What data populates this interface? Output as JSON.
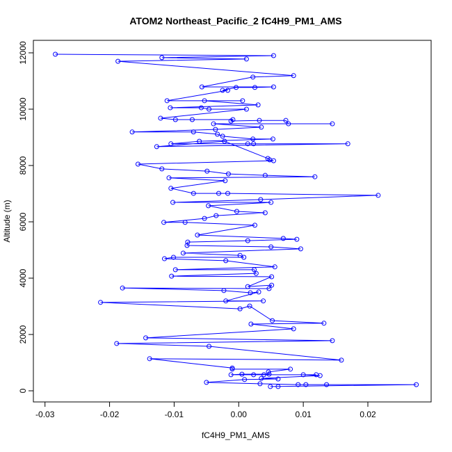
{
  "chart_data": {
    "type": "line",
    "title": "ATOM2 Northeast_Pacific_2 fC4H9_PM1_AMS",
    "x_label": "fC4H9_PM1_AMS",
    "y_label": "Altitude (m)",
    "color": "#0000ff",
    "xlim": [
      -0.0318,
      0.0298
    ],
    "ylim": [
      -395,
      12444
    ],
    "xticks": [
      -0.03,
      -0.02,
      -0.01,
      {
        "value": 0,
        "label": "0.00"
      },
      0.01,
      0.02
    ],
    "yticks": [
      0,
      2000,
      4000,
      6000,
      8000,
      10000,
      12000
    ],
    "x": [
      -0.0284,
      0.0054,
      -0.0119,
      0.0012,
      -0.0187,
      0.0085,
      0.0022,
      -0.0057,
      0.0054,
      0.0025,
      -0.0004,
      -0.0025,
      -0.0017,
      -0.0111,
      0.0006,
      -0.0053,
      0.003,
      -0.0106,
      -0.0058,
      -0.0046,
      0.0012,
      -0.0121,
      -0.0098,
      -0.0072,
      -0.0009,
      -0.0012,
      0.0032,
      0.0073,
      0.0077,
      0.0145,
      -0.0039,
      0.0035,
      -0.0036,
      -0.0165,
      -0.007,
      -0.0033,
      -0.0025,
      0.0022,
      0.0053,
      -0.0061,
      -0.0105,
      0.0014,
      0.0023,
      0.0169,
      -0.0127,
      -0.0022,
      0.0045,
      0.0048,
      0.0054,
      -0.0156,
      -0.0119,
      -0.0049,
      -0.0016,
      0.0041,
      0.0118,
      -0.0108,
      -0.0021,
      -0.0105,
      -0.007,
      -0.0031,
      -0.0017,
      0.0216,
      0.0034,
      -0.0102,
      0.005,
      -0.0047,
      -0.0003,
      0.0041,
      -0.0035,
      -0.0053,
      -0.0116,
      -0.0083,
      0.0025,
      -0.0064,
      0.0069,
      0.009,
      0.0014,
      -0.0079,
      -0.008,
      0.005,
      0.0096,
      -0.0086,
      0.0002,
      0.0008,
      -0.0101,
      -0.0115,
      -0.002,
      0.0056,
      -0.0098,
      0.0024,
      0.0027,
      -0.0104,
      0.0051,
      0.0014,
      0.0051,
      0.0047,
      -0.018,
      -0.0023,
      0.0018,
      0.0031,
      -0.002,
      0.0038,
      -0.0214,
      0.0002,
      0.0017,
      0.0052,
      0.0132,
      0.0019,
      0.0085,
      -0.0144,
      0.0145,
      -0.0189,
      -0.0046,
      0.0159,
      -0.0138,
      -0.001,
      -0.001,
      0.008,
      0.0046,
      0.0047,
      0.0005,
      -0.0012,
      0.0023,
      0.0039,
      0.012,
      0.01,
      0.0126,
      0.0035,
      0.0061,
      0.0009,
      -0.005,
      0.0033,
      0.0092,
      0.0104,
      0.0136,
      0.0275,
      0.0049,
      0.0061
    ],
    "values": [
      11950,
      11900,
      11830,
      11780,
      11700,
      11190,
      11140,
      10790,
      10790,
      10770,
      10770,
      10670,
      10670,
      10300,
      10300,
      10300,
      10150,
      10050,
      10050,
      10000,
      10000,
      9680,
      9630,
      9630,
      9630,
      9580,
      9600,
      9600,
      9480,
      9480,
      9480,
      9360,
      9280,
      9190,
      9190,
      9110,
      9040,
      8940,
      8940,
      8860,
      8770,
      8770,
      8770,
      8770,
      8670,
      8860,
      8250,
      8200,
      8170,
      8050,
      7880,
      7800,
      7700,
      7650,
      7600,
      7560,
      7460,
      7190,
      7010,
      7010,
      7010,
      6940,
      6790,
      6690,
      6690,
      6570,
      6370,
      6320,
      6220,
      6120,
      5980,
      5980,
      5880,
      5530,
      5410,
      5380,
      5330,
      5280,
      5160,
      5110,
      5040,
      4890,
      4810,
      4740,
      4740,
      4690,
      4620,
      4400,
      4300,
      4300,
      4170,
      4070,
      4050,
      3700,
      3750,
      3630,
      3650,
      3560,
      3480,
      3510,
      3190,
      3190,
      3140,
      2910,
      3010,
      2490,
      2400,
      2370,
      2200,
      1880,
      1780,
      1680,
      1580,
      1090,
      1140,
      810,
      770,
      770,
      670,
      590,
      590,
      570,
      570,
      570,
      570,
      570,
      540,
      440,
      420,
      400,
      300,
      250,
      220,
      220,
      220,
      220,
      150,
      150
    ]
  }
}
